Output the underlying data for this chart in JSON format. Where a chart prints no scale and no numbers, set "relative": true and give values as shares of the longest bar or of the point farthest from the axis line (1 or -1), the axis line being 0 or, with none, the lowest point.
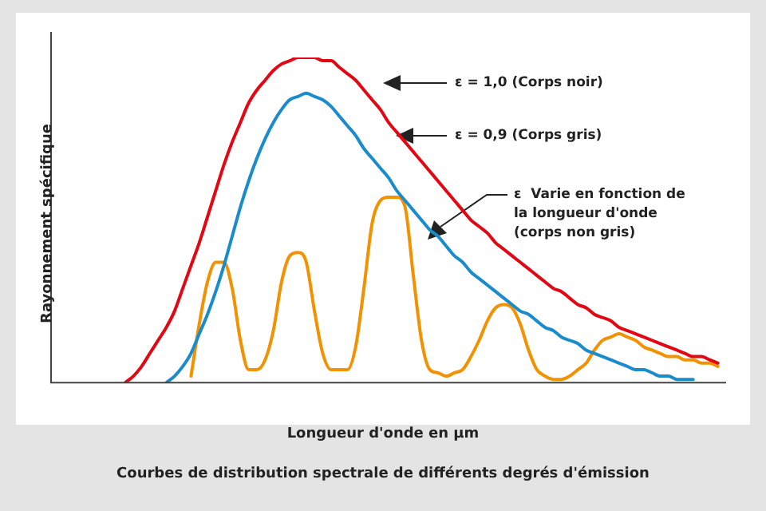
{
  "chart_data": {
    "type": "line",
    "relative": true,
    "title": "Courbes de distribution spectrale de différents degrés d'émission",
    "xlabel": "Longueur d'onde en µm",
    "ylabel": "Rayonnement spécifique",
    "categories": [
      null,
      null,
      null,
      null,
      null,
      null,
      null,
      null,
      null,
      null,
      null,
      null,
      null,
      null,
      null,
      null,
      null,
      null,
      null,
      null,
      null,
      null,
      null,
      null,
      null,
      null,
      null,
      null,
      null,
      null,
      null,
      null,
      null,
      null,
      null,
      null,
      null,
      null,
      null,
      null,
      null,
      null,
      null,
      null,
      null,
      null,
      null,
      null,
      null,
      null,
      null,
      null,
      null,
      null,
      null,
      null,
      null,
      null,
      null,
      null,
      null,
      null,
      null,
      null,
      null,
      null,
      null,
      null,
      null,
      null,
      null,
      null,
      null,
      null,
      null,
      null,
      null,
      null,
      null,
      null,
      null,
      null,
      null
    ],
    "series": [
      {
        "color": "#e30613",
        "values": [
          null,
          null,
          null,
          null,
          null,
          null,
          null,
          null,
          null,
          0,
          0.02,
          0.05,
          0.09,
          0.13,
          0.17,
          0.22,
          0.29,
          0.36,
          0.43,
          0.51,
          0.59,
          0.67,
          0.74,
          0.8,
          0.86,
          0.9,
          0.93,
          0.96,
          0.98,
          0.99,
          1,
          1,
          1,
          0.99,
          0.99,
          0.97,
          0.95,
          0.93,
          0.9,
          0.87,
          0.84,
          0.8,
          0.77,
          0.74,
          0.71,
          0.68,
          0.65,
          0.62,
          0.59,
          0.56,
          0.53,
          0.5,
          0.48,
          0.46,
          0.43,
          0.41,
          0.39,
          0.37,
          0.35,
          0.33,
          0.31,
          0.29,
          0.28,
          0.26,
          0.24,
          0.23,
          0.21,
          0.2,
          0.19,
          0.17,
          0.16,
          0.15,
          0.14,
          0.13,
          0.12,
          0.11,
          0.1,
          0.09,
          0.08,
          0.08,
          0.07,
          0.06,
          null
        ]
      },
      {
        "color": "#1a8ccc",
        "values": [
          null,
          null,
          null,
          null,
          null,
          null,
          null,
          null,
          null,
          null,
          null,
          null,
          null,
          null,
          0,
          0.02,
          0.05,
          0.09,
          0.15,
          0.21,
          0.28,
          0.36,
          0.45,
          0.54,
          0.62,
          0.69,
          0.75,
          0.8,
          0.84,
          0.87,
          0.88,
          0.89,
          0.88,
          0.87,
          0.85,
          0.82,
          0.79,
          0.76,
          0.72,
          0.69,
          0.66,
          0.63,
          0.59,
          0.56,
          0.53,
          0.5,
          0.47,
          0.45,
          0.42,
          0.39,
          0.37,
          0.34,
          0.32,
          0.3,
          0.28,
          0.26,
          0.24,
          0.22,
          0.21,
          0.19,
          0.17,
          0.16,
          0.14,
          0.13,
          0.12,
          0.1,
          0.09,
          0.08,
          0.07,
          0.06,
          0.05,
          0.04,
          0.04,
          0.03,
          0.02,
          0.02,
          0.01,
          0.01,
          0.01,
          null,
          null,
          null,
          null
        ]
      },
      {
        "color": "#f39200",
        "values": [
          null,
          null,
          null,
          null,
          null,
          null,
          null,
          null,
          null,
          null,
          null,
          null,
          null,
          null,
          null,
          null,
          null,
          0.02,
          0.18,
          0.31,
          0.37,
          0.37,
          0.29,
          0.13,
          0.04,
          0.04,
          0.07,
          0.16,
          0.31,
          0.39,
          0.4,
          0.37,
          0.22,
          0.09,
          0.04,
          0.04,
          0.04,
          0.11,
          0.29,
          0.49,
          0.56,
          0.57,
          0.57,
          0.54,
          0.33,
          0.13,
          0.04,
          0.03,
          0.02,
          0.03,
          0.04,
          0.08,
          0.13,
          0.19,
          0.23,
          0.24,
          0.23,
          0.18,
          0.1,
          0.04,
          0.02,
          0.01,
          0.01,
          0.02,
          0.04,
          0.06,
          0.1,
          0.13,
          0.14,
          0.15,
          0.14,
          0.13,
          0.11,
          0.1,
          0.09,
          0.08,
          0.08,
          0.07,
          0.07,
          0.06,
          0.06,
          0.05,
          null
        ]
      }
    ],
    "annotations": [
      "ε = 1,0 (Corps noir)",
      "ε = 0,9 (Corps gris)",
      "ε  Varie en fonction de\nla longueur d'onde\n(corps non gris)"
    ],
    "legend": false,
    "grid": false,
    "marker": "none",
    "line_style": "solid"
  }
}
